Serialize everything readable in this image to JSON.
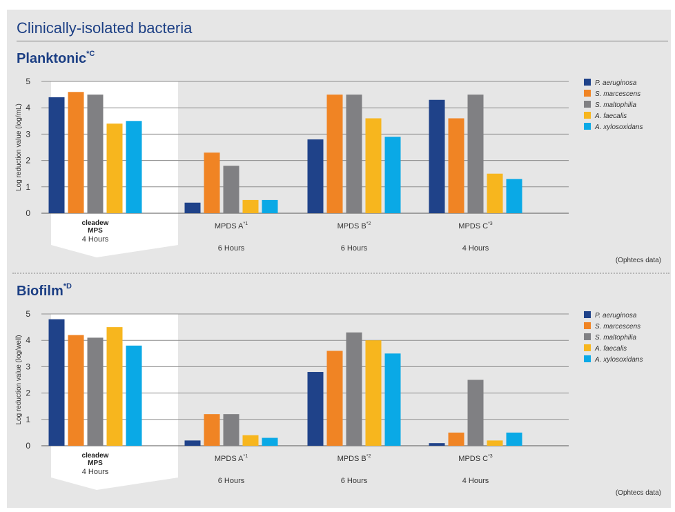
{
  "page": {
    "title": "Clinically-isolated bacteria",
    "source_note": "(Ophtecs data)"
  },
  "colors": {
    "P. aeruginosa": "#1f4289",
    "S. marcescens": "#f08424",
    "S. maltophilia": "#808083",
    "A. faecalis": "#f7b61e",
    "A. xylosoxidans": "#0aa9e6",
    "highlight": "#ffffff",
    "title": "#1c3f84"
  },
  "chart_data": [
    {
      "type": "bar",
      "title": "Planktonic",
      "title_sup": "*C",
      "ylabel": "Log reduction value (log/mL)",
      "ylim": [
        0,
        5
      ],
      "yticks": [
        0,
        1,
        2,
        3,
        4,
        5
      ],
      "grid": true,
      "legend_position": "right",
      "categories": [
        {
          "name": "cleadew",
          "name2": "MPS",
          "sup": "",
          "time": "4 Hours",
          "highlight": true
        },
        {
          "name": "MPDS A",
          "name2": "",
          "sup": "*1",
          "time": "6 Hours",
          "highlight": false
        },
        {
          "name": "MPDS B",
          "name2": "",
          "sup": "*2",
          "time": "6 Hours",
          "highlight": false
        },
        {
          "name": "MPDS C",
          "name2": "",
          "sup": "*3",
          "time": "4 Hours",
          "highlight": false
        }
      ],
      "series": [
        {
          "name": "P. aeruginosa",
          "values": [
            4.4,
            0.4,
            2.8,
            4.3
          ]
        },
        {
          "name": "S. marcescens",
          "values": [
            4.6,
            2.3,
            4.5,
            3.6
          ]
        },
        {
          "name": "S. maltophilia",
          "values": [
            4.5,
            1.8,
            4.5,
            4.5
          ]
        },
        {
          "name": "A. faecalis",
          "values": [
            3.4,
            0.5,
            3.6,
            1.5
          ]
        },
        {
          "name": "A. xylosoxidans",
          "values": [
            3.5,
            0.5,
            2.9,
            1.3
          ]
        }
      ]
    },
    {
      "type": "bar",
      "title": "Biofilm",
      "title_sup": "*D",
      "ylabel": "Log reduction value (log/well)",
      "ylim": [
        0,
        5
      ],
      "yticks": [
        0,
        1,
        2,
        3,
        4,
        5
      ],
      "grid": true,
      "legend_position": "right",
      "categories": [
        {
          "name": "cleadew",
          "name2": "MPS",
          "sup": "",
          "time": "4 Hours",
          "highlight": true
        },
        {
          "name": "MPDS A",
          "name2": "",
          "sup": "*1",
          "time": "6 Hours",
          "highlight": false
        },
        {
          "name": "MPDS B",
          "name2": "",
          "sup": "*2",
          "time": "6 Hours",
          "highlight": false
        },
        {
          "name": "MPDS C",
          "name2": "",
          "sup": "*3",
          "time": "4 Hours",
          "highlight": false
        }
      ],
      "series": [
        {
          "name": "P. aeruginosa",
          "values": [
            4.8,
            0.2,
            2.8,
            0.1
          ]
        },
        {
          "name": "S. marcescens",
          "values": [
            4.2,
            1.2,
            3.6,
            0.5
          ]
        },
        {
          "name": "S. maltophilia",
          "values": [
            4.1,
            1.2,
            4.3,
            2.5
          ]
        },
        {
          "name": "A. faecalis",
          "values": [
            4.5,
            0.4,
            4.0,
            0.2
          ]
        },
        {
          "name": "A. xylosoxidans",
          "values": [
            3.8,
            0.3,
            3.5,
            0.5
          ]
        }
      ]
    }
  ]
}
